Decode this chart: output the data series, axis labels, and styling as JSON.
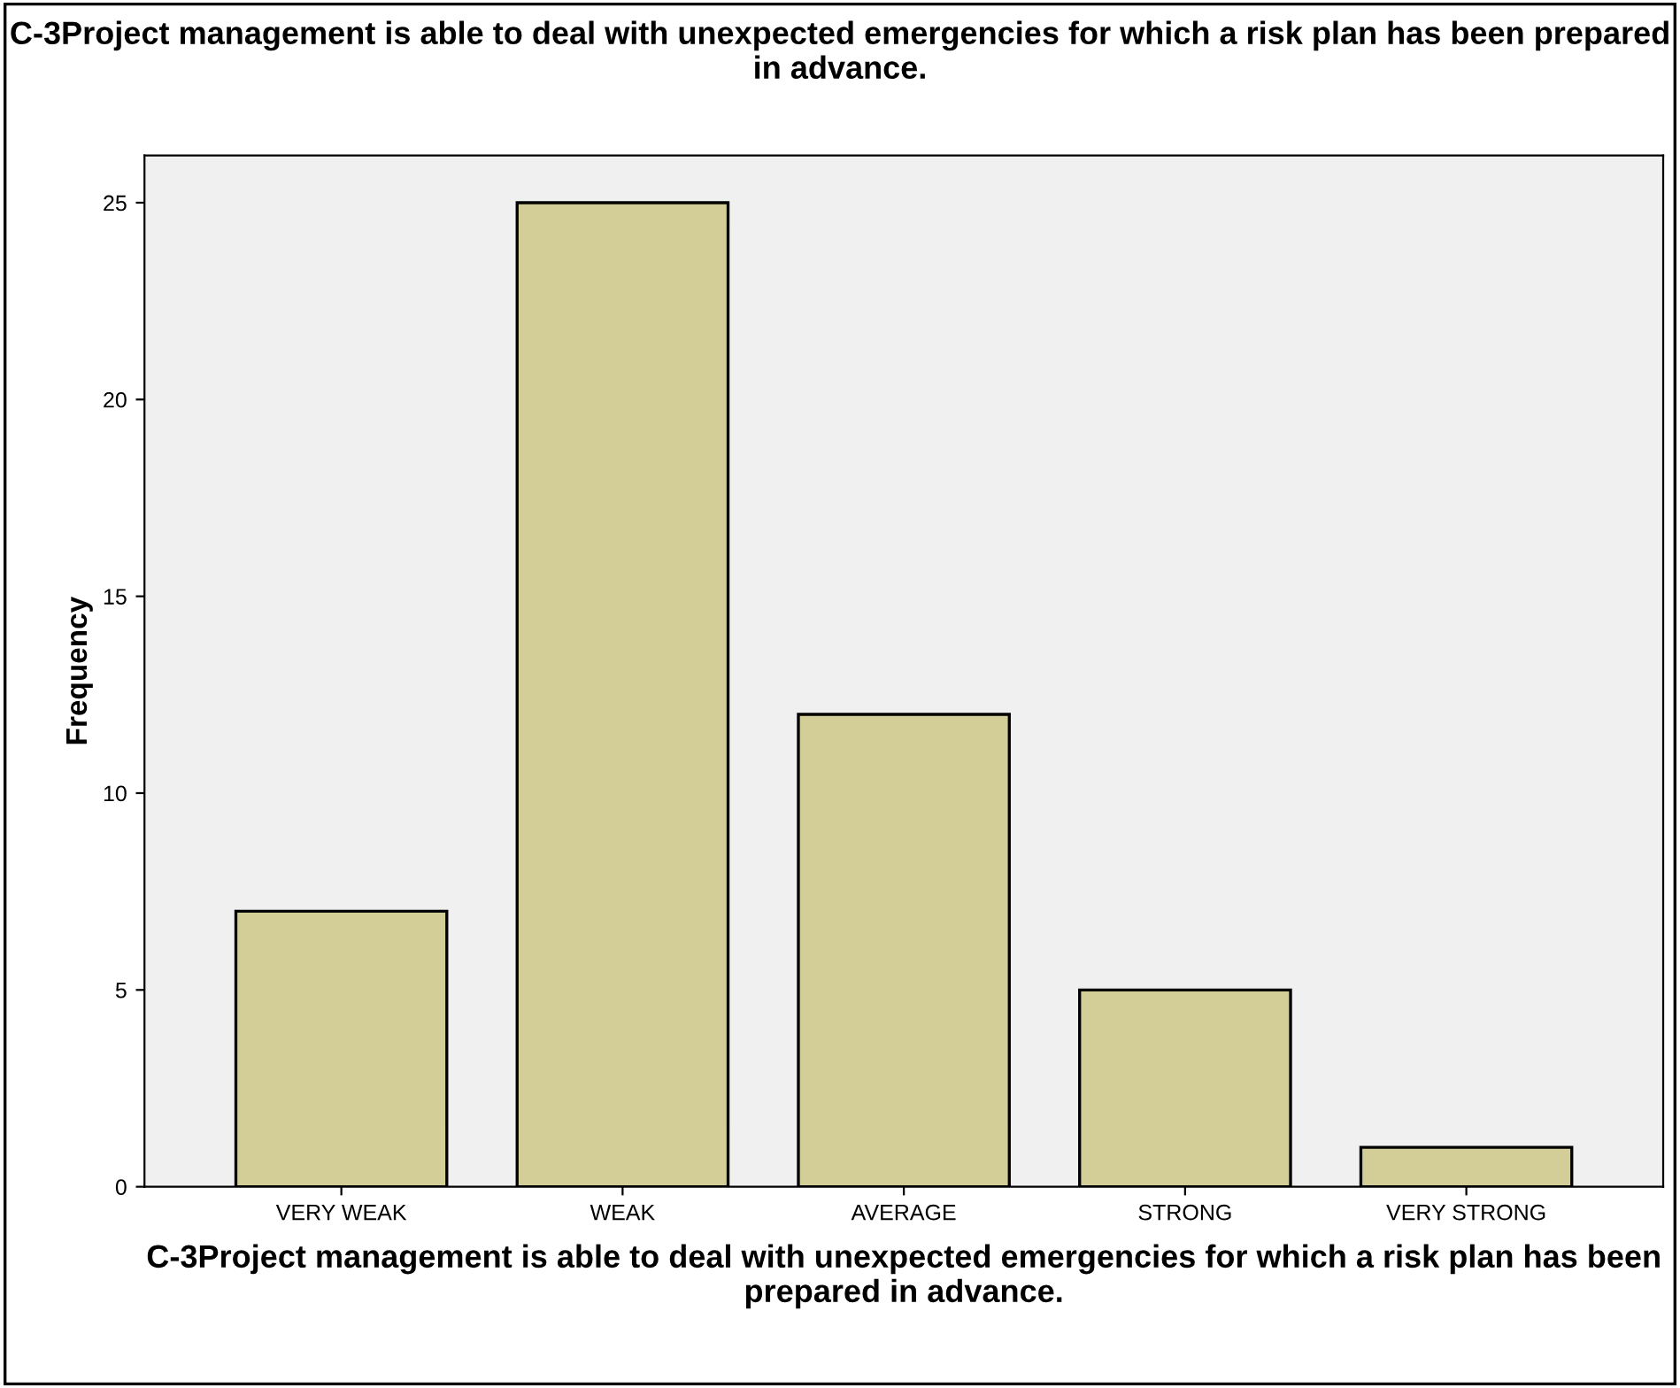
{
  "chart_data": {
    "type": "bar",
    "title": "C-3Project management is able to deal with unexpected emergencies for which a risk plan has been prepared in advance.",
    "xlabel": "C-3Project management is able to deal with unexpected emergencies for which a risk plan has been prepared in advance.",
    "ylabel": "Frequency",
    "categories": [
      "VERY WEAK",
      "WEAK",
      "AVERAGE",
      "STRONG",
      "VERY STRONG"
    ],
    "values": [
      7,
      25,
      12,
      5,
      1
    ],
    "color": "#d3ce97",
    "ylim": [
      0,
      26.2
    ],
    "yticks": [
      0,
      5,
      10,
      15,
      20,
      25
    ],
    "grid": false,
    "legend": false
  }
}
